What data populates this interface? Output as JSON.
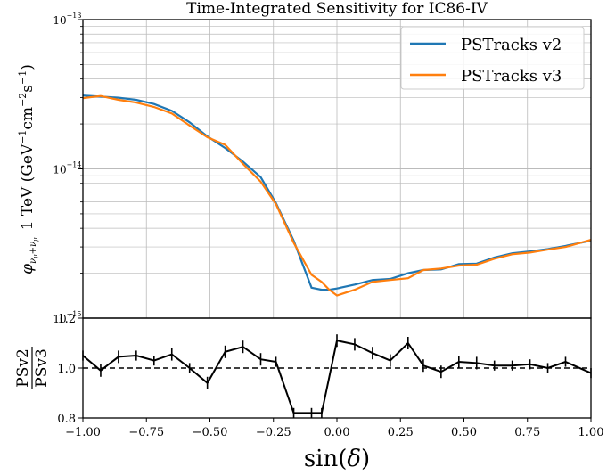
{
  "chart_data": [
    {
      "type": "line",
      "title": "Time-Integrated Sensitivity for IC86-IV",
      "ylabel_main": "1 TeV (GeV",
      "ylabel_prefix": "φ",
      "ylabel_sub": "ν",
      "ylabel_sub2": "μ",
      "ylabel_plus": "+",
      "ylabel_units": "cm",
      "ylabel_units2": "s",
      "ylabel_exp": "−1",
      "ylabel_exp2": "−2",
      "yscale": "log",
      "ylim": [
        1e-15,
        1e-13
      ],
      "xlim": [
        -1.0,
        1.0
      ],
      "y_tick_labels": [
        "10",
        "10",
        "10"
      ],
      "y_tick_exps": [
        "−13",
        "−14",
        "−15"
      ],
      "grid": true,
      "legend_position": "top-right",
      "colors": {
        "v2": "#1f77b4",
        "v3": "#ff7f0e"
      },
      "series": [
        {
          "name": "PSTracks v2",
          "x": [
            -1.0,
            -0.93,
            -0.86,
            -0.79,
            -0.72,
            -0.65,
            -0.58,
            -0.51,
            -0.44,
            -0.37,
            -0.3,
            -0.24,
            -0.17,
            -0.1,
            -0.06,
            -0.03,
            0.0,
            0.07,
            0.14,
            0.21,
            0.28,
            0.34,
            0.41,
            0.48,
            0.55,
            0.62,
            0.69,
            0.76,
            0.83,
            0.9,
            1.0
          ],
          "values": [
            3.1e-14,
            3.05e-14,
            3e-14,
            2.9e-14,
            2.72e-14,
            2.45e-14,
            2.05e-14,
            1.65e-14,
            1.38e-14,
            1.12e-14,
            8.8e-15,
            5.9e-15,
            3.3e-15,
            1.6e-15,
            1.55e-15,
            1.55e-15,
            1.58e-15,
            1.68e-15,
            1.8e-15,
            1.83e-15,
            2e-15,
            2.1e-15,
            2.12e-15,
            2.3e-15,
            2.32e-15,
            2.55e-15,
            2.72e-15,
            2.8e-15,
            2.9e-15,
            3.05e-15,
            3.3e-15
          ]
        },
        {
          "name": "PSTracks v3",
          "x": [
            -1.0,
            -0.93,
            -0.86,
            -0.79,
            -0.72,
            -0.65,
            -0.58,
            -0.51,
            -0.44,
            -0.37,
            -0.3,
            -0.24,
            -0.17,
            -0.1,
            -0.06,
            -0.03,
            0.0,
            0.07,
            0.14,
            0.21,
            0.28,
            0.34,
            0.41,
            0.48,
            0.55,
            0.62,
            0.69,
            0.76,
            0.83,
            0.9,
            1.0
          ],
          "values": [
            2.98e-14,
            3.08e-14,
            2.9e-14,
            2.78e-14,
            2.6e-14,
            2.35e-14,
            1.95e-14,
            1.63e-14,
            1.45e-14,
            1.08e-14,
            8.2e-15,
            5.8e-15,
            3.2e-15,
            1.95e-15,
            1.75e-15,
            1.55e-15,
            1.42e-15,
            1.55e-15,
            1.75e-15,
            1.8e-15,
            1.85e-15,
            2.1e-15,
            2.15e-15,
            2.25e-15,
            2.28e-15,
            2.5e-15,
            2.68e-15,
            2.75e-15,
            2.88e-15,
            3e-15,
            3.35e-15
          ]
        }
      ]
    },
    {
      "type": "line",
      "ylabel_num": "PSv2",
      "ylabel_den": "PSv3",
      "xlabel_prefix": "sin(",
      "xlabel_symbol": "δ",
      "xlabel_suffix": ")",
      "ylim": [
        0.8,
        1.2
      ],
      "xlim": [
        -1.0,
        1.0
      ],
      "x_tick_labels": [
        "−1.00",
        "−0.75",
        "−0.50",
        "−0.25",
        "0.00",
        "0.25",
        "0.50",
        "0.75",
        "1.00"
      ],
      "y_tick_labels": [
        "0.8",
        "1.0",
        "1.2"
      ],
      "reference_line": 1.0,
      "series": [
        {
          "x": [
            -1.0,
            -0.93,
            -0.86,
            -0.79,
            -0.72,
            -0.65,
            -0.58,
            -0.51,
            -0.44,
            -0.37,
            -0.3,
            -0.24,
            -0.17,
            -0.1,
            -0.06,
            0.0,
            0.07,
            0.14,
            0.21,
            0.28,
            0.34,
            0.41,
            0.48,
            0.55,
            0.62,
            0.69,
            0.76,
            0.83,
            0.9,
            1.0
          ],
          "values": [
            1.05,
            0.99,
            1.045,
            1.05,
            1.03,
            1.055,
            1.0,
            0.94,
            1.065,
            1.085,
            1.035,
            1.025,
            0.82,
            0.82,
            0.82,
            1.11,
            1.095,
            1.06,
            1.03,
            1.1,
            1.01,
            0.985,
            1.025,
            1.02,
            1.01,
            1.01,
            1.015,
            1.0,
            1.025,
            0.98
          ],
          "errors": [
            0.02,
            0.025,
            0.025,
            0.02,
            0.02,
            0.025,
            0.02,
            0.025,
            0.025,
            0.025,
            0.025,
            0.02,
            0.02,
            0.02,
            0.02,
            0.025,
            0.025,
            0.025,
            0.025,
            0.025,
            0.025,
            0.025,
            0.025,
            0.025,
            0.02,
            0.02,
            0.02,
            0.02,
            0.02,
            0.02
          ]
        }
      ]
    }
  ]
}
